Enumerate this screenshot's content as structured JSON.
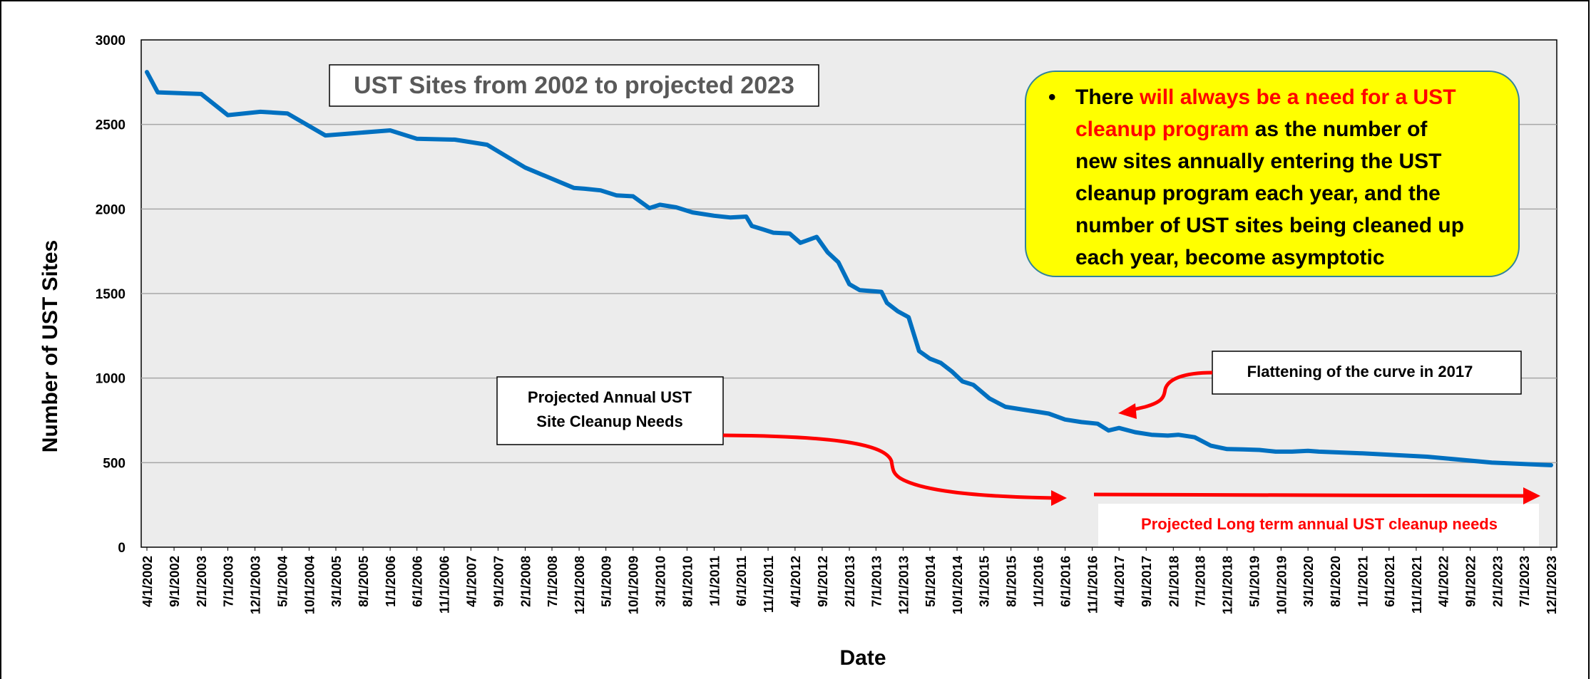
{
  "chart_data": {
    "type": "line",
    "title": "UST Sites from 2002 to projected 2023",
    "xlabel": "Date",
    "ylabel": "Number of UST Sites",
    "ylim": [
      0,
      3000
    ],
    "yticks": [
      0,
      500,
      1000,
      1500,
      2000,
      2500,
      3000
    ],
    "grid": true,
    "x_tick_labels": [
      "4/1/2002",
      "9/1/2002",
      "2/1/2003",
      "7/1/2003",
      "12/1/2003",
      "5/1/2004",
      "10/1/2004",
      "3/1/2005",
      "8/1/2005",
      "1/1/2006",
      "6/1/2006",
      "11/1/2006",
      "4/1/2007",
      "9/1/2007",
      "2/1/2008",
      "7/1/2008",
      "12/1/2008",
      "5/1/2009",
      "10/1/2009",
      "3/1/2010",
      "8/1/2010",
      "1/1/2011",
      "6/1/2011",
      "11/1/2011",
      "4/1/2012",
      "9/1/2012",
      "2/1/2013",
      "7/1/2013",
      "12/1/2013",
      "5/1/2014",
      "10/1/2014",
      "3/1/2015",
      "8/1/2015",
      "1/1/2016",
      "6/1/2016",
      "11/1/2016",
      "4/1/2017",
      "9/1/2017",
      "2/1/2018",
      "7/1/2018",
      "12/1/2018",
      "5/1/2019",
      "10/1/2019",
      "3/1/2020",
      "8/1/2020",
      "1/1/2021",
      "6/1/2021",
      "11/1/2021",
      "4/1/2022",
      "9/1/2022",
      "2/1/2023",
      "7/1/2023",
      "12/1/2023"
    ],
    "series": [
      {
        "color": "#0070C0",
        "points": [
          [
            "2002-04-01",
            2810
          ],
          [
            "2002-06-01",
            2690
          ],
          [
            "2003-02-01",
            2680
          ],
          [
            "2003-07-01",
            2555
          ],
          [
            "2004-01-01",
            2575
          ],
          [
            "2004-06-01",
            2565
          ],
          [
            "2005-01-01",
            2435
          ],
          [
            "2006-01-01",
            2465
          ],
          [
            "2006-06-01",
            2415
          ],
          [
            "2007-01-01",
            2410
          ],
          [
            "2007-07-01",
            2380
          ],
          [
            "2008-02-01",
            2245
          ],
          [
            "2008-11-01",
            2125
          ],
          [
            "2009-01-01",
            2120
          ],
          [
            "2009-04-01",
            2110
          ],
          [
            "2009-07-01",
            2080
          ],
          [
            "2009-10-01",
            2075
          ],
          [
            "2010-01-01",
            2005
          ],
          [
            "2010-03-01",
            2025
          ],
          [
            "2010-06-01",
            2010
          ],
          [
            "2010-09-01",
            1980
          ],
          [
            "2011-01-01",
            1960
          ],
          [
            "2011-04-01",
            1950
          ],
          [
            "2011-07-01",
            1955
          ],
          [
            "2011-08-01",
            1900
          ],
          [
            "2011-10-01",
            1880
          ],
          [
            "2011-12-01",
            1860
          ],
          [
            "2012-03-01",
            1855
          ],
          [
            "2012-05-01",
            1800
          ],
          [
            "2012-08-01",
            1835
          ],
          [
            "2012-10-01",
            1745
          ],
          [
            "2012-12-01",
            1685
          ],
          [
            "2013-02-01",
            1555
          ],
          [
            "2013-04-01",
            1520
          ],
          [
            "2013-08-01",
            1510
          ],
          [
            "2013-09-01",
            1445
          ],
          [
            "2013-11-01",
            1395
          ],
          [
            "2014-01-01",
            1360
          ],
          [
            "2014-03-01",
            1160
          ],
          [
            "2014-05-01",
            1115
          ],
          [
            "2014-07-01",
            1090
          ],
          [
            "2014-09-01",
            1040
          ],
          [
            "2014-11-01",
            980
          ],
          [
            "2015-01-01",
            960
          ],
          [
            "2015-04-01",
            880
          ],
          [
            "2015-07-01",
            830
          ],
          [
            "2015-10-01",
            815
          ],
          [
            "2016-01-01",
            800
          ],
          [
            "2016-03-01",
            790
          ],
          [
            "2016-06-01",
            755
          ],
          [
            "2016-09-01",
            740
          ],
          [
            "2016-12-01",
            730
          ],
          [
            "2017-02-01",
            690
          ],
          [
            "2017-04-01",
            705
          ],
          [
            "2017-07-01",
            680
          ],
          [
            "2017-10-01",
            665
          ],
          [
            "2018-01-01",
            660
          ],
          [
            "2018-03-01",
            665
          ],
          [
            "2018-06-01",
            650
          ],
          [
            "2018-09-01",
            600
          ],
          [
            "2018-12-01",
            580
          ],
          [
            "2019-03-01",
            578
          ],
          [
            "2019-06-01",
            575
          ],
          [
            "2019-09-01",
            565
          ],
          [
            "2019-12-01",
            565
          ],
          [
            "2020-03-01",
            570
          ],
          [
            "2020-05-01",
            565
          ],
          [
            "2021-01-01",
            555
          ],
          [
            "2022-01-01",
            535
          ],
          [
            "2023-01-01",
            500
          ],
          [
            "2023-12-01",
            485
          ]
        ]
      }
    ],
    "callout": {
      "bullet": "•",
      "text_segments": [
        {
          "text": "There ",
          "color": "#000000"
        },
        {
          "text": "will always be a need for a UST cleanup program",
          "color": "#FF0000"
        },
        {
          "text": " as the number of new sites annually entering the UST cleanup program each year, and the number of UST sites being cleaned up each year, become asymptotic",
          "color": "#000000"
        }
      ],
      "lines": [
        [
          {
            "text": "There ",
            "color": "#000000"
          },
          {
            "text": "will always be a need for a UST",
            "color": "#FF0000"
          }
        ],
        [
          {
            "text": "cleanup program",
            "color": "#FF0000"
          },
          {
            "text": " as the number of",
            "color": "#000000"
          }
        ],
        [
          {
            "text": "new sites annually entering the UST",
            "color": "#000000"
          }
        ],
        [
          {
            "text": "cleanup program each year, and the",
            "color": "#000000"
          }
        ],
        [
          {
            "text": "number of UST sites being cleaned up",
            "color": "#000000"
          }
        ],
        [
          {
            "text": "each year, become asymptotic",
            "color": "#000000"
          }
        ]
      ],
      "background": "#FFFF00"
    },
    "annotations": {
      "flattening": "Flattening of the curve in 2017",
      "projected_annual_line1": "Projected Annual UST",
      "projected_annual_line2": "Site Cleanup Needs",
      "projected_long_term": "Projected Long term annual UST cleanup needs"
    },
    "colors": {
      "line": "#0070C0",
      "arrow": "#FF0000",
      "plot_bg": "#ECECEC",
      "grid": "#A6A6A6"
    }
  }
}
